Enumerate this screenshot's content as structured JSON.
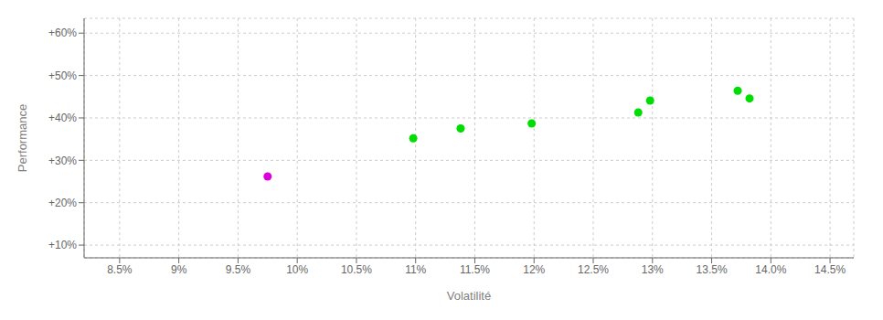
{
  "chart_data": {
    "type": "scatter",
    "x_label": "Volatilité",
    "y_label": "Performance",
    "xlim": [
      0.082,
      0.147
    ],
    "ylim": [
      0.07,
      0.635
    ],
    "xticks": [
      {
        "value": 0.085,
        "label": "8.5%"
      },
      {
        "value": 0.09,
        "label": "9%"
      },
      {
        "value": 0.095,
        "label": "9.5%"
      },
      {
        "value": 0.1,
        "label": "10%"
      },
      {
        "value": 0.105,
        "label": "10.5%"
      },
      {
        "value": 0.11,
        "label": "11%"
      },
      {
        "value": 0.115,
        "label": "11.5%"
      },
      {
        "value": 0.12,
        "label": "12%"
      },
      {
        "value": 0.125,
        "label": "12.5%"
      },
      {
        "value": 0.13,
        "label": "13%"
      },
      {
        "value": 0.135,
        "label": "13.5%"
      },
      {
        "value": 0.14,
        "label": "14.0%"
      },
      {
        "value": 0.145,
        "label": "14.5%"
      }
    ],
    "yticks": [
      {
        "value": 0.1,
        "label": "+10%"
      },
      {
        "value": 0.2,
        "label": "+20%"
      },
      {
        "value": 0.3,
        "label": "+30%"
      },
      {
        "value": 0.4,
        "label": "+40%"
      },
      {
        "value": 0.5,
        "label": "+50%"
      },
      {
        "value": 0.6,
        "label": "+60%"
      }
    ],
    "grid": true,
    "series": [
      {
        "color": "#00dd00",
        "x": [
          0.1098,
          0.1138,
          0.1198,
          0.1288,
          0.1298,
          0.1372,
          0.1382
        ],
        "y": [
          0.352,
          0.375,
          0.387,
          0.413,
          0.441,
          0.464,
          0.446
        ]
      },
      {
        "color": "#dd00dd",
        "x": [
          0.0975
        ],
        "y": [
          0.262
        ]
      }
    ]
  }
}
